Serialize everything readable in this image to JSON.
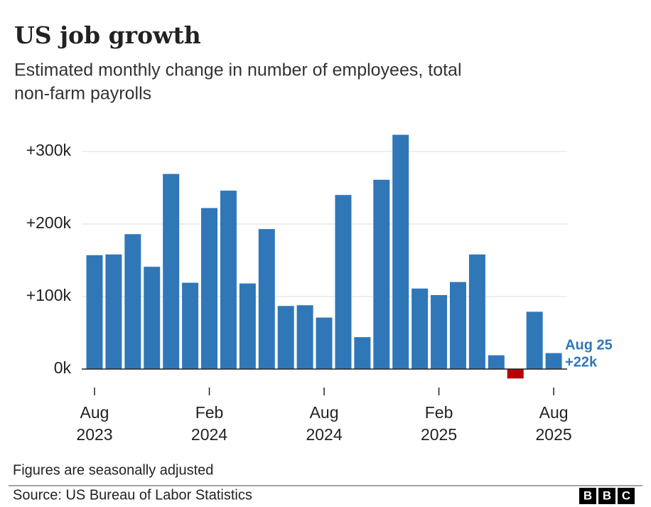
{
  "chart_data": {
    "type": "bar",
    "title": "US job growth",
    "subtitle": [
      "Estimated monthly change in number of employees, total",
      "non-farm payrolls"
    ],
    "categories": [
      "Aug 2023",
      null,
      null,
      null,
      null,
      null,
      "Feb 2024",
      null,
      null,
      null,
      null,
      null,
      "Aug 2024",
      null,
      null,
      null,
      null,
      null,
      "Feb 2025",
      null,
      null,
      null,
      null,
      null,
      "Aug 2025"
    ],
    "values": [
      157,
      158,
      186,
      141,
      269,
      119,
      222,
      246,
      118,
      193,
      87,
      88,
      71,
      240,
      44,
      261,
      323,
      111,
      102,
      120,
      158,
      19,
      -13,
      79,
      22
    ],
    "value_labels": [
      null,
      null,
      null,
      null,
      null,
      null,
      null,
      null,
      null,
      null,
      null,
      null,
      null,
      null,
      null,
      null,
      null,
      null,
      null,
      null,
      null,
      null,
      null,
      null,
      "+22k"
    ],
    "annotation": "Aug 25",
    "color": "#3077b8",
    "negative_color": "#b80000",
    "label_color": "#3077b8",
    "ylim": [
      -20,
      330
    ],
    "yticks": [
      {
        "value": 0,
        "label": "0k"
      },
      {
        "value": 100,
        "label": "+100k"
      },
      {
        "value": 200,
        "label": "+200k"
      },
      {
        "value": 300,
        "label": "+300k"
      }
    ],
    "grid": true,
    "note": "Figures are seasonally adjusted",
    "source": "Source: US Bureau of Labor Statistics",
    "logo": [
      "B",
      "B",
      "C"
    ]
  }
}
